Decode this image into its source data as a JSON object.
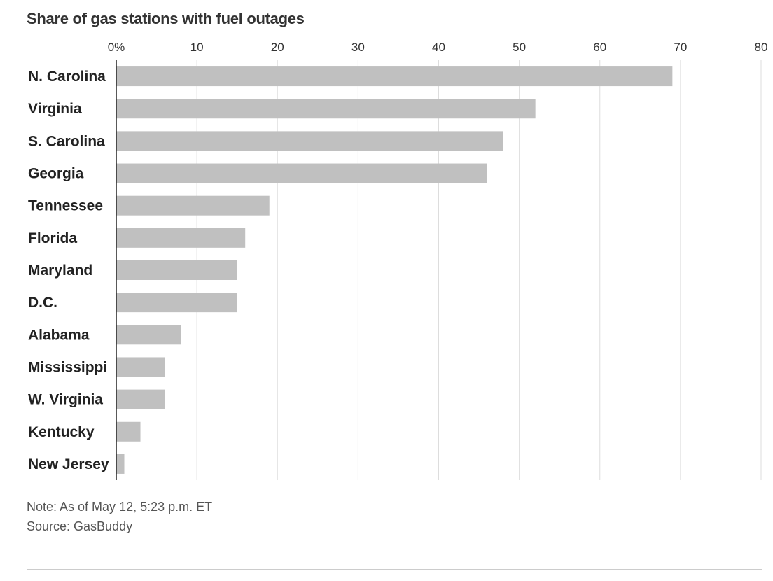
{
  "chart_data": {
    "type": "bar",
    "orientation": "horizontal",
    "title": "Share of gas stations with fuel outages",
    "categories": [
      "N. Carolina",
      "Virginia",
      "S. Carolina",
      "Georgia",
      "Tennessee",
      "Florida",
      "Maryland",
      "D.C.",
      "Alabama",
      "Mississippi",
      "W. Virginia",
      "Kentucky",
      "New Jersey"
    ],
    "values": [
      69,
      52,
      48,
      46,
      19,
      16,
      15,
      15,
      8,
      6,
      6,
      3,
      1
    ],
    "xlim": [
      0,
      80
    ],
    "xticks": [
      0,
      10,
      20,
      30,
      40,
      50,
      60,
      70,
      80
    ],
    "xtick_labels": [
      "0%",
      "10",
      "20",
      "30",
      "40",
      "50",
      "60",
      "70",
      "80"
    ],
    "grid": true,
    "bar_color": "#c0c0c0",
    "grid_color": "#dddddd"
  },
  "notes": {
    "note": "Note: As of May 12, 5:23 p.m. ET",
    "source": "Source: GasBuddy"
  }
}
